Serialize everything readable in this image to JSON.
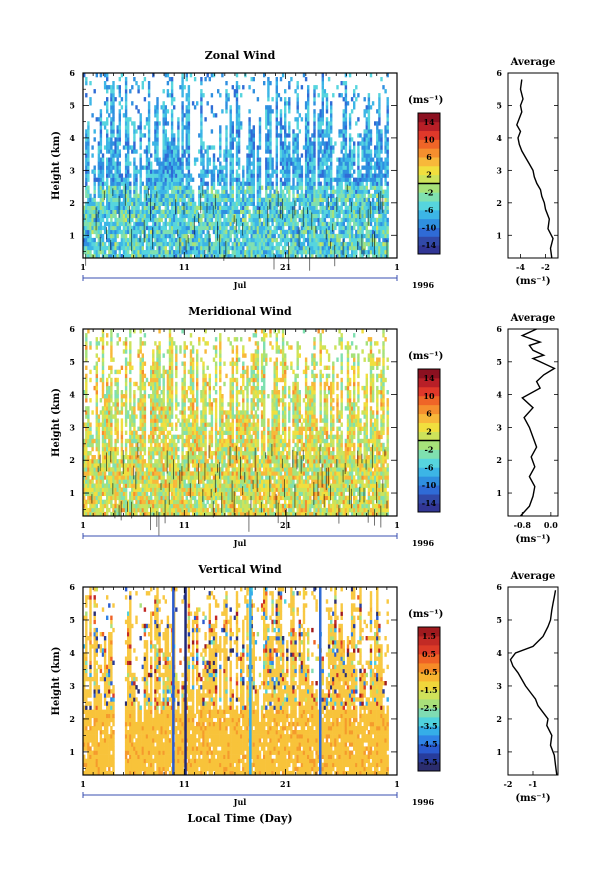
{
  "figure": {
    "xlabel": "Local Time (Day)",
    "month_label": "Jul",
    "year_label": "1996"
  },
  "chart_data": [
    {
      "type": "heatmap",
      "title": "Zonal Wind",
      "ylabel": "Height (km)",
      "xlabel": "",
      "x_ticks": [
        "1",
        "11",
        "21",
        "1"
      ],
      "y_ticks": [
        "1",
        "2",
        "3",
        "4",
        "5",
        "6"
      ],
      "ylim": [
        0.3,
        6
      ],
      "colorbar": {
        "unit": "(ms⁻¹)",
        "labels": [
          "14",
          "10",
          "6",
          "2",
          "-2",
          "-6",
          "-10",
          "-14"
        ],
        "range": [
          -16,
          16
        ],
        "zero_line": 0
      },
      "column_gaps": [
        [
          31,
          36
        ]
      ],
      "colors": {
        "dominant": "#3a9ad8"
      }
    },
    {
      "type": "heatmap",
      "title": "Meridional Wind",
      "ylabel": "Height (km)",
      "xlabel": "",
      "x_ticks": [
        "1",
        "11",
        "21",
        "1"
      ],
      "y_ticks": [
        "1",
        "2",
        "3",
        "4",
        "5",
        "6"
      ],
      "ylim": [
        0.3,
        6
      ],
      "colorbar": {
        "unit": "(ms⁻¹)",
        "labels": [
          "14",
          "10",
          "6",
          "2",
          "-2",
          "-6",
          "-10",
          "-14"
        ],
        "range": [
          -16,
          16
        ],
        "zero_line": 0
      },
      "column_gaps": [
        [
          31,
          36
        ]
      ],
      "colors": {
        "dominant": "#7fd68a"
      }
    },
    {
      "type": "heatmap",
      "title": "Vertical Wind",
      "ylabel": "Height (km)",
      "xlabel": "",
      "x_ticks": [
        "1",
        "11",
        "21",
        "1"
      ],
      "y_ticks": [
        "1",
        "2",
        "3",
        "4",
        "5",
        "6"
      ],
      "ylim": [
        0.3,
        6
      ],
      "colorbar": {
        "unit": "(ms⁻¹)",
        "labels": [
          "1.5",
          "0.5",
          "-0.5",
          "-1.5",
          "-2.5",
          "-3.5",
          "-4.5",
          "-5.5"
        ],
        "range": [
          -6,
          2
        ]
      },
      "column_gaps": [
        [
          4,
          5
        ],
        [
          31,
          36
        ]
      ],
      "colors": {
        "dominant": "#f7c13a"
      }
    },
    {
      "type": "line",
      "title": "Average",
      "xlabel": "(ms⁻¹)",
      "x_ticks": [
        "-4",
        "-2"
      ],
      "x_tick_values": [
        -4,
        -2
      ],
      "xlim": [
        -5,
        -1
      ],
      "y_ticks": [
        "1",
        "2",
        "3",
        "4",
        "5",
        "6"
      ],
      "ylim": [
        0.3,
        6
      ],
      "x": [
        -1.5,
        -1.6,
        -1.4,
        -1.8,
        -1.7,
        -2.0,
        -2.1,
        -2.3,
        -2.4,
        -2.7,
        -2.9,
        -3.0,
        -3.3,
        -3.6,
        -3.9,
        -4.1,
        -4.2,
        -4.0,
        -4.3,
        -4.1,
        -3.9,
        -4.0,
        -3.8,
        -4.0,
        -3.9
      ],
      "y": [
        0.3,
        0.6,
        0.9,
        1.2,
        1.5,
        1.8,
        2.0,
        2.2,
        2.4,
        2.6,
        2.8,
        3.0,
        3.2,
        3.4,
        3.6,
        3.8,
        4.0,
        4.2,
        4.4,
        4.6,
        4.8,
        5.0,
        5.2,
        5.5,
        5.8
      ]
    },
    {
      "type": "line",
      "title": "Average",
      "xlabel": "(ms⁻¹)",
      "x_ticks": [
        "-0.8",
        "0.0"
      ],
      "x_tick_values": [
        -0.8,
        0.0
      ],
      "xlim": [
        -1.2,
        0.2
      ],
      "y_ticks": [
        "1",
        "2",
        "3",
        "4",
        "5",
        "6"
      ],
      "ylim": [
        0.3,
        6
      ],
      "x": [
        -0.85,
        -0.6,
        -0.5,
        -0.45,
        -0.6,
        -0.45,
        -0.55,
        -0.4,
        -0.5,
        -0.6,
        -0.75,
        -0.5,
        -0.8,
        -0.3,
        -0.4,
        -0.2,
        0.1,
        -0.3,
        -0.5,
        -0.2,
        -0.5,
        -0.6,
        -0.3,
        -0.8,
        -0.4
      ],
      "y": [
        0.3,
        0.6,
        0.9,
        1.2,
        1.5,
        1.8,
        2.1,
        2.4,
        2.7,
        3.0,
        3.3,
        3.6,
        3.9,
        4.2,
        4.4,
        4.6,
        4.8,
        5.0,
        5.1,
        5.2,
        5.35,
        5.5,
        5.6,
        5.8,
        6.0
      ]
    },
    {
      "type": "line",
      "title": "Average",
      "xlabel": "(ms⁻¹)",
      "x_ticks": [
        "-2",
        "-1"
      ],
      "x_tick_values": [
        -2,
        -1
      ],
      "xlim": [
        -2,
        0
      ],
      "y_ticks": [
        "1",
        "2",
        "3",
        "4",
        "5",
        "6"
      ],
      "ylim": [
        0.3,
        6
      ],
      "x": [
        -0.05,
        -0.1,
        -0.15,
        -0.3,
        -0.25,
        -0.45,
        -0.4,
        -0.6,
        -0.8,
        -0.9,
        -1.1,
        -1.3,
        -1.45,
        -1.6,
        -1.8,
        -1.9,
        -1.7,
        -1.0,
        -0.6,
        -0.4,
        -0.3,
        -0.25,
        -0.2,
        -0.15,
        -0.1
      ],
      "y": [
        0.3,
        0.6,
        0.9,
        1.2,
        1.5,
        1.8,
        2.0,
        2.2,
        2.4,
        2.6,
        2.8,
        3.0,
        3.2,
        3.4,
        3.6,
        3.8,
        4.0,
        4.2,
        4.5,
        4.8,
        5.0,
        5.3,
        5.5,
        5.7,
        5.9
      ]
    }
  ]
}
